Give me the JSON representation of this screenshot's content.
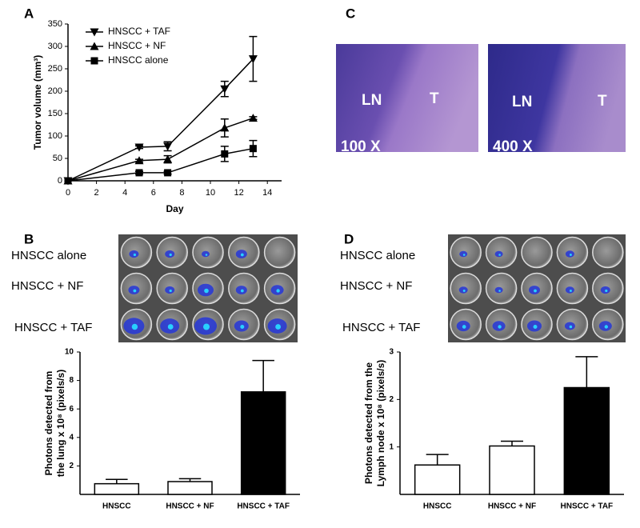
{
  "panel_labels": [
    "A",
    "B",
    "C",
    "D"
  ],
  "chart_data": [
    {
      "type": "line",
      "x_label": "Day",
      "y_label": "Tumor volume (mm³)",
      "x": [
        0,
        5,
        7,
        11,
        13
      ],
      "xlim": [
        0,
        15
      ],
      "xticks": [
        0,
        2,
        4,
        6,
        8,
        10,
        12,
        14
      ],
      "ylim": [
        0,
        350
      ],
      "yticks": [
        0,
        50,
        100,
        150,
        200,
        250,
        300,
        350
      ],
      "legend": "upper left",
      "series": [
        {
          "name": "HNSCC + TAF",
          "color": "#000000",
          "marker": "triangle-down",
          "values": [
            0,
            75,
            77,
            205,
            272
          ],
          "errors": [
            null,
            3,
            10,
            17,
            50
          ]
        },
        {
          "name": "HNSCC + NF",
          "color": "#000000",
          "marker": "triangle",
          "values": [
            0,
            45,
            48,
            118,
            140
          ],
          "errors": [
            null,
            3,
            8,
            20,
            3
          ]
        },
        {
          "name": "HNSCC alone",
          "color": "#000000",
          "marker": "square",
          "values": [
            0,
            18,
            18,
            60,
            72
          ],
          "errors": [
            null,
            3,
            3,
            17,
            18
          ]
        }
      ]
    },
    {
      "type": "bar",
      "y_label": [
        "Photons detected from",
        "the lung x 10⁸ (pixels/s)"
      ],
      "categories": [
        "HNSCC",
        "HNSCC + NF",
        "HNSCC + TAF"
      ],
      "values": [
        0.75,
        0.9,
        7.2
      ],
      "errors": [
        0.3,
        0.2,
        2.2
      ],
      "colors": [
        "#ffffff",
        "#ffffff",
        "#000000"
      ],
      "ylim": [
        0,
        10
      ],
      "yticks": [
        2,
        4,
        6,
        8,
        10
      ]
    },
    {
      "type": "bar",
      "y_label": [
        "Photons detected from the",
        "Lymph node x 10⁸ (pixels/s)"
      ],
      "categories": [
        "HNSCC",
        "HNSCC + NF",
        "HNSCC + TAF"
      ],
      "values": [
        0.62,
        1.02,
        2.25
      ],
      "errors": [
        0.22,
        0.1,
        0.65
      ],
      "colors": [
        "#ffffff",
        "#ffffff",
        "#000000"
      ],
      "ylim": [
        0,
        3
      ],
      "yticks": [
        1,
        2,
        3
      ]
    }
  ],
  "histology": [
    {
      "labels": [
        "LN",
        "T"
      ],
      "magnification": "100 X"
    },
    {
      "labels": [
        "LN",
        "T"
      ],
      "magnification": "400 X"
    }
  ],
  "imaging": [
    {
      "rows": [
        "HNSCC alone",
        "HNSCC + NF",
        "HNSCC + TAF"
      ]
    },
    {
      "rows": [
        "HNSCC alone",
        "HNSCC + NF",
        "HNSCC + TAF"
      ]
    }
  ]
}
